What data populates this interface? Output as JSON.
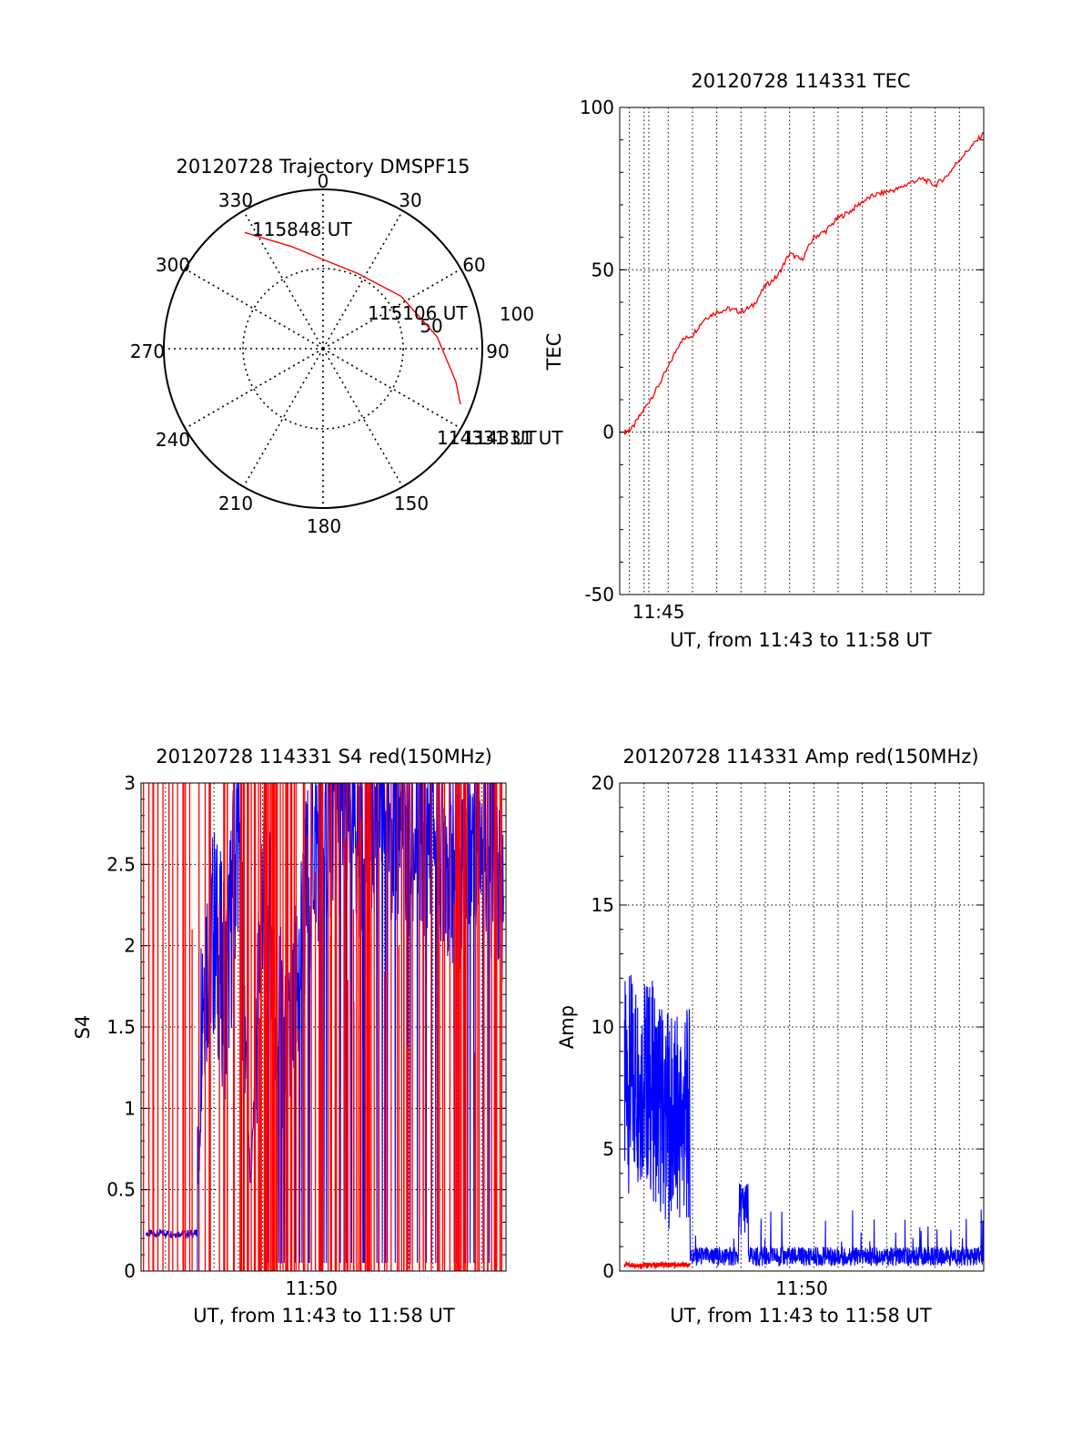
{
  "chart_data": [
    {
      "type": "polar",
      "title": "20120728 Trajectory DMSPF15",
      "azimuth_labels": [
        "0",
        "30",
        "60",
        "90",
        "150",
        "180",
        "210",
        "240",
        "270",
        "300",
        "330"
      ],
      "radius_labels": [
        "50",
        "100"
      ],
      "annotations": [
        "115848 UT",
        "115106 UT",
        "114331 UT",
        "114331 UT"
      ],
      "series": [
        {
          "color": "#ff0000",
          "points": [
            {
              "az": 326,
              "zenith": 88
            },
            {
              "az": 343,
              "zenith": 67
            },
            {
              "az": 0,
              "zenith": 56
            },
            {
              "az": 25,
              "zenith": 52
            },
            {
              "az": 56,
              "zenith": 59
            },
            {
              "az": 84,
              "zenith": 72
            },
            {
              "az": 104,
              "zenith": 86
            },
            {
              "az": 112,
              "zenith": 93
            }
          ]
        }
      ]
    },
    {
      "type": "line",
      "title": "20120728 114331 TEC",
      "xlabel": "UT, from 11:43 to 11:58 UT",
      "ylabel": "TEC",
      "x_tick_labels": [
        "11:45"
      ],
      "y_tick_labels": [
        "100",
        "50",
        "0",
        "-50"
      ],
      "xlim": [
        0,
        15
      ],
      "ylim": [
        -50,
        100
      ],
      "series": [
        {
          "color": "#ff0000",
          "x": [
            0.2,
            0.5,
            1.0,
            1.5,
            2.0,
            2.5,
            3.0,
            3.5,
            4.0,
            4.5,
            5.0,
            5.5,
            6.0,
            6.5,
            7.0,
            7.5,
            8.0,
            8.5,
            9.0,
            9.5,
            10.0,
            10.5,
            11.0,
            11.5,
            12.0,
            12.5,
            13.0,
            13.5,
            14.0,
            14.5,
            15.0
          ],
          "y": [
            0,
            1,
            7,
            13,
            20,
            28,
            30,
            35,
            37,
            38,
            37,
            39,
            45,
            48,
            55,
            53,
            60,
            62,
            66,
            68,
            71,
            73,
            74,
            75,
            77,
            78,
            76,
            79,
            84,
            88,
            92
          ]
        }
      ]
    },
    {
      "type": "line",
      "title": "20120728 114331 S4 red(150MHz)",
      "xlabel": "UT, from 11:43 to 11:58 UT",
      "ylabel": "S4",
      "x_tick_labels": [
        "11:50"
      ],
      "y_tick_labels": [
        "3",
        "2.5",
        "2",
        "1.5",
        "1",
        "0.5",
        "0"
      ],
      "xlim": [
        0,
        15
      ],
      "ylim": [
        0,
        3
      ],
      "series": [
        {
          "color": "#0000ff",
          "x": [
            0.2,
            1.0,
            1.5,
            2.0,
            2.3,
            2.5,
            3.0,
            3.5,
            4.0,
            4.5,
            5.0,
            6.0,
            7.0,
            8.0,
            9.0,
            10.0,
            11.0,
            12.0,
            13.0,
            14.0,
            14.9
          ],
          "y": [
            0.22,
            0.24,
            0.23,
            0.25,
            0.23,
            1.8,
            2.1,
            1.7,
            2.8,
            0.5,
            2.4,
            1.1,
            2.6,
            2.9,
            2.7,
            2.9,
            2.6,
            2.8,
            2.5,
            2.9,
            2.2
          ]
        },
        {
          "color": "#ff0000",
          "x": [
            0.1,
            0.5,
            0.9,
            1.3,
            2.0,
            2.8,
            3.4,
            4.2,
            5.1,
            5.6,
            6.2,
            7.0,
            7.8,
            8.6,
            9.3,
            10.1,
            10.8,
            11.6,
            12.4,
            13.1,
            13.9,
            14.6
          ],
          "y": [
            3,
            0,
            3,
            0,
            3,
            0.1,
            3,
            0,
            3,
            0,
            3,
            0,
            3,
            0,
            3,
            0,
            3,
            0,
            3,
            0,
            3,
            0
          ]
        }
      ]
    },
    {
      "type": "line",
      "title": "20120728 114331 Amp red(150MHz)",
      "xlabel": "UT, from 11:43 to 11:58 UT",
      "ylabel": "Amp",
      "x_tick_labels": [
        "11:50"
      ],
      "y_tick_labels": [
        "20",
        "15",
        "10",
        "5",
        "0"
      ],
      "xlim": [
        0,
        15
      ],
      "ylim": [
        0,
        20
      ],
      "series": [
        {
          "color": "#0000ff",
          "x": [
            0.2,
            0.5,
            1.0,
            1.5,
            2.0,
            2.5,
            2.8,
            3.0,
            3.5,
            4.0,
            4.5,
            5.0,
            5.2,
            5.5,
            6.0,
            7.0,
            8.0,
            9.0,
            9.5,
            10.0,
            11.0,
            12.0,
            13.0,
            14.0,
            15.0
          ],
          "y": [
            7.0,
            9.0,
            8.5,
            7.0,
            6.5,
            7.5,
            7.0,
            0.6,
            0.5,
            0.5,
            0.6,
            3.0,
            2.5,
            0.5,
            0.5,
            0.6,
            0.5,
            0.5,
            2.5,
            0.5,
            0.5,
            0.5,
            0.5,
            0.5,
            0.5
          ]
        },
        {
          "color": "#ff0000",
          "x": [
            0.2,
            1.0,
            2.0,
            2.8,
            3.5,
            5.0
          ],
          "y": [
            0.25,
            0.25,
            0.25,
            0.25,
            0.2,
            0.1
          ]
        }
      ]
    }
  ]
}
